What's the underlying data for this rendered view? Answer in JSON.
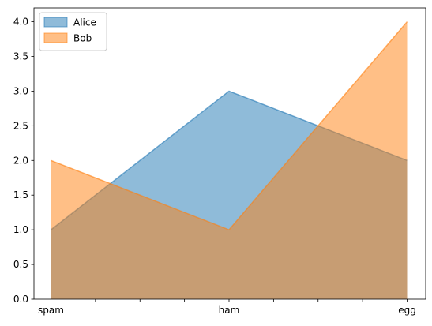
{
  "chart_data": {
    "type": "area",
    "stacked": false,
    "categories": [
      "spam",
      "ham",
      "egg"
    ],
    "x_tick_labels": [
      "spam",
      "",
      "",
      "",
      "ham",
      "",
      "",
      "",
      "egg"
    ],
    "series": [
      {
        "name": "Alice",
        "values": [
          1,
          3,
          2
        ],
        "color": "#1f77b4",
        "alpha": 0.5
      },
      {
        "name": "Bob",
        "values": [
          2,
          1,
          4
        ],
        "color": "#ff7f0e",
        "alpha": 0.5
      }
    ],
    "ylim": [
      0,
      4.2
    ],
    "yticks": [
      0.0,
      0.5,
      1.0,
      1.5,
      2.0,
      2.5,
      3.0,
      3.5,
      4.0
    ],
    "ytick_labels": [
      "0.0",
      "0.5",
      "1.0",
      "1.5",
      "2.0",
      "2.5",
      "3.0",
      "3.5",
      "4.0"
    ],
    "grid": false,
    "legend": {
      "placement": "upper-left",
      "entries": [
        "Alice",
        "Bob"
      ]
    },
    "title": "",
    "xlabel": "",
    "ylabel": ""
  }
}
